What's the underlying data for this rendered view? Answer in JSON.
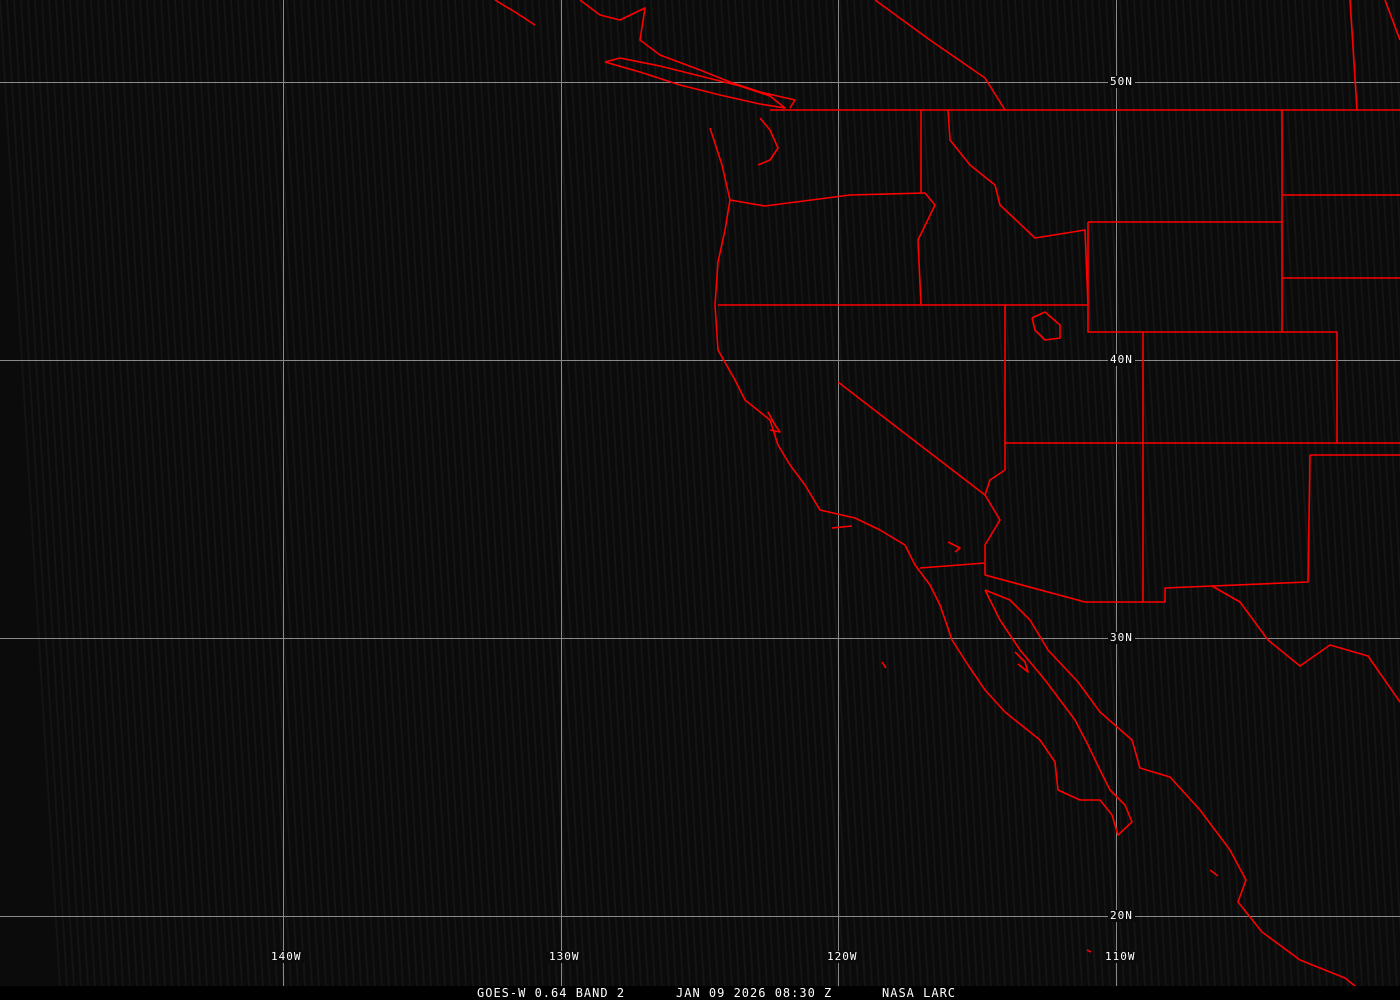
{
  "caption": {
    "satellite": "GOES-W 0.64 BAND 2",
    "datetime": "JAN 09 2026 08:30 Z",
    "source": "NASA LARC"
  },
  "grid": {
    "longitudes": [
      "140W",
      "130W",
      "120W",
      "110W"
    ],
    "latitudes": [
      "50N",
      "40N",
      "30N",
      "20N"
    ]
  },
  "colors": {
    "background": "#0b0b0b",
    "grid": "#8a8a8a",
    "boundaries": "#ff0000",
    "text": "#ffffff"
  }
}
